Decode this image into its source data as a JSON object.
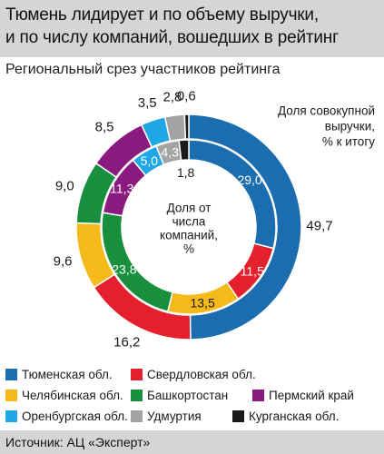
{
  "title": {
    "line1": "Тюмень лидирует и по объему выручки,",
    "line2": "и по числу компаний, вошедших в рейтинг"
  },
  "subtitle": "Региональный срез участников рейтинга",
  "chart_data": {
    "type": "donut",
    "outer_label": "Доля совокупной выручки, % к итогу",
    "outer_label_lines": [
      "Доля совокупной",
      "выручки,",
      "% к итогу"
    ],
    "inner_label_lines": [
      "Доля от",
      "числа",
      "компаний,",
      "%"
    ],
    "categories": [
      "Тюменская обл.",
      "Свердловская обл.",
      "Челябинская обл.",
      "Башкортостан",
      "Пермский край",
      "Оренбургская обл.",
      "Удмуртия",
      "Курганская обл."
    ],
    "colors": [
      "#1b6db0",
      "#e51f2b",
      "#f5b919",
      "#178f3d",
      "#8a1a7e",
      "#1ea7e4",
      "#a3a3a3",
      "#1a1a1a"
    ],
    "series": [
      {
        "name": "Доля совокупной выручки, % к итогу",
        "ring": "outer",
        "values": [
          49.7,
          16.2,
          9.6,
          9.0,
          8.5,
          3.5,
          2.8,
          0.6
        ],
        "labels": [
          "49,7",
          "16,2",
          "9,6",
          "9,0",
          "8,5",
          "3,5",
          "2,8",
          "0,6"
        ]
      },
      {
        "name": "Доля от числа компаний, %",
        "ring": "inner",
        "values": [
          29.0,
          11.5,
          13.5,
          23.8,
          11.3,
          5.0,
          4.3,
          1.8
        ],
        "labels": [
          "29,0",
          "11,5",
          "13,5",
          "23,8",
          "11,3",
          "5,0",
          "4,3",
          "1,8"
        ]
      }
    ]
  },
  "legend": [
    {
      "label": "Тюменская обл.",
      "color": "#1b6db0"
    },
    {
      "label": "Свердловская обл.",
      "color": "#e51f2b"
    },
    {
      "label": "Челябинская обл.",
      "color": "#f5b919"
    },
    {
      "label": "Башкортостан",
      "color": "#178f3d"
    },
    {
      "label": "Пермский край",
      "color": "#8a1a7e"
    },
    {
      "label": "Оренбургская обл.",
      "color": "#1ea7e4"
    },
    {
      "label": "Удмуртия",
      "color": "#a3a3a3"
    },
    {
      "label": "Курганская обл.",
      "color": "#1a1a1a"
    }
  ],
  "source": "Источник: АЦ «Эксперт»"
}
